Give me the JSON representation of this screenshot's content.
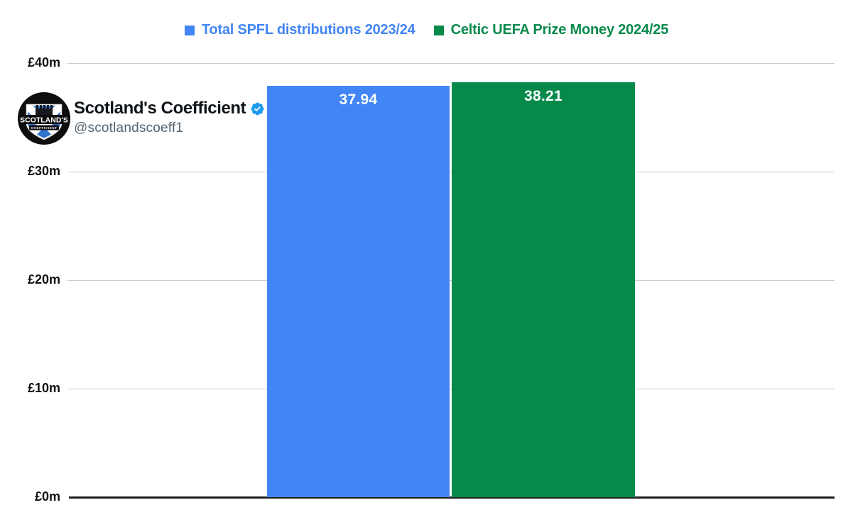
{
  "chart_data": {
    "type": "bar",
    "categories": [
      ""
    ],
    "series": [
      {
        "name": "Total SPFL distributions 2023/24",
        "values": [
          37.94
        ],
        "color": "#4285f4"
      },
      {
        "name": "Celtic UEFA Prize Money 2024/25",
        "values": [
          38.21
        ],
        "color": "#07894a"
      }
    ],
    "value_labels": [
      "37.94",
      "38.21"
    ],
    "title": "",
    "xlabel": "",
    "ylabel": "",
    "ytick_labels": [
      "£40m",
      "£30m",
      "£20m",
      "£10m",
      "£0m"
    ],
    "ylim": [
      0,
      40
    ],
    "grid": true,
    "legend_position": "top"
  },
  "profile": {
    "name": "Scotland's Coefficient",
    "handle": "@scotlandscoeff1",
    "verified_icon": "verified-badge",
    "logo": {
      "top_text": "SCOTLAND'S",
      "bottom_text": "COEFFICIENT"
    }
  },
  "colors": {
    "grid_line": "#cccccc",
    "axis_line": "#1f1f1f",
    "axis_label": "#111111",
    "bar_value_text": "#ffffff",
    "name_text": "#0f1419",
    "handle_text": "#536471",
    "verified_blue": "#1d9bf0",
    "logo_saltire_blue": "#2e74cd"
  }
}
